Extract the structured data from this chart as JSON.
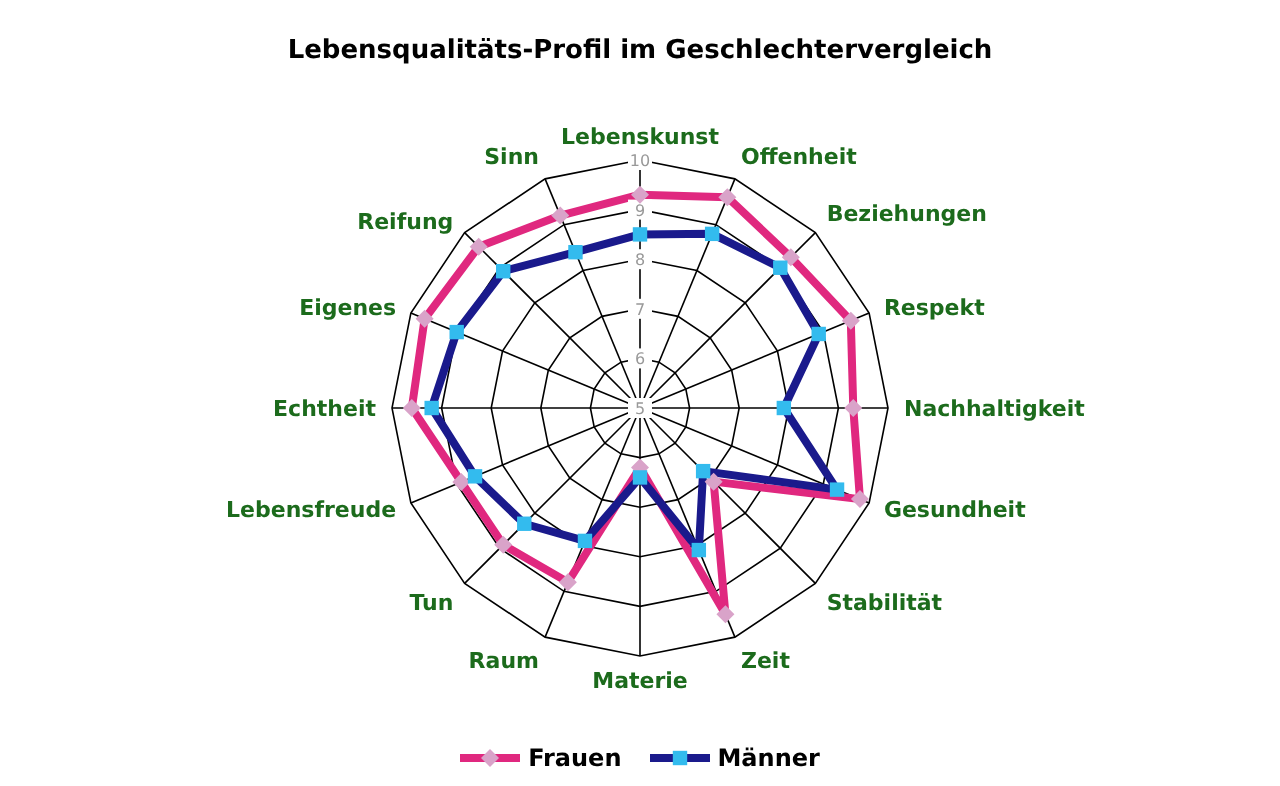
{
  "chart_data": {
    "type": "radar",
    "title": "Lebensqualitäts-Profil im Geschlechtervergleich",
    "categories": [
      "Lebenskunst",
      "Offenheit",
      "Beziehungen",
      "Respekt",
      "Nachhaltigkeit",
      "Gesundheit",
      "Stabilität",
      "Zeit",
      "Materie",
      "Raum",
      "Tun",
      "Lebensfreude",
      "Echtheit",
      "Eigenes",
      "Reifung",
      "Sinn"
    ],
    "series": [
      {
        "name": "Frauen",
        "color": "#e0287f",
        "marker": "diamond",
        "values": [
          9.3,
          9.6,
          9.3,
          9.6,
          9.3,
          9.8,
          7.1,
          9.5,
          6.2,
          8.8,
          8.9,
          8.9,
          9.6,
          9.7,
          9.6,
          9.2
        ]
      },
      {
        "name": "Männer",
        "color": "#1a1a8c",
        "marker": "square",
        "values": [
          8.5,
          8.8,
          9.0,
          8.9,
          7.9,
          9.3,
          6.8,
          8.1,
          6.4,
          7.9,
          8.3,
          8.6,
          9.2,
          9.0,
          8.9,
          8.4
        ]
      }
    ],
    "ylim": [
      5,
      10
    ],
    "yticks": [
      5,
      6,
      7,
      8,
      9,
      10
    ],
    "grid": true,
    "legend": "bottom",
    "line_style": "solid"
  }
}
